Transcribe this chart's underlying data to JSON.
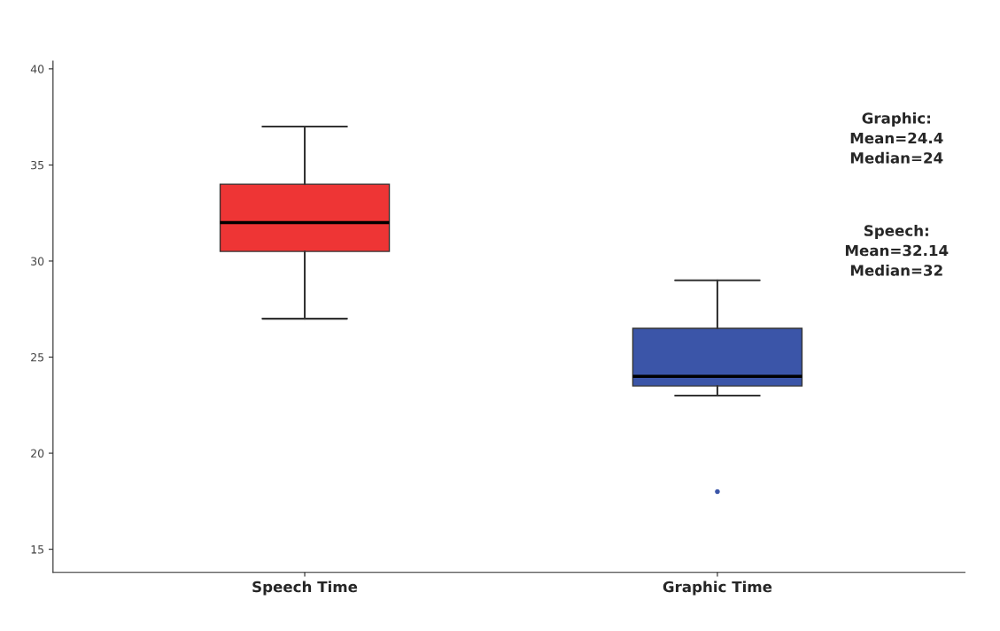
{
  "chart_data": {
    "type": "box",
    "categories": [
      "Speech Time",
      "Graphic Time"
    ],
    "colors": [
      "#ee3535",
      "#3b55a8"
    ],
    "boxes": [
      {
        "low": 27,
        "q1": 30.5,
        "median": 32,
        "q3": 34,
        "high": 37
      },
      {
        "low": 23,
        "q1": 23.5,
        "median": 24,
        "q3": 26.5,
        "high": 29,
        "outliers": [
          18
        ]
      }
    ],
    "ylim": [
      13.8,
      40.4
    ],
    "yticks": [
      15,
      20,
      25,
      30,
      35,
      40
    ],
    "grid": false,
    "legend": false,
    "annotations": [
      "Graphic:\nMean=24.4\nMedian=24",
      "Speech:\nMean=32.14\nMedian=32"
    ]
  }
}
